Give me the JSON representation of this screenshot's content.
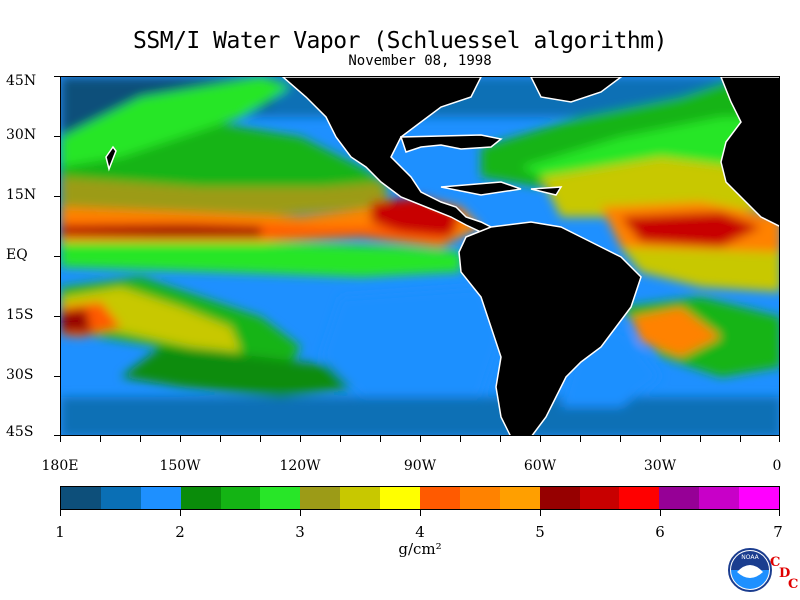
{
  "header": {
    "title": "SSM/I Water Vapor (Schluessel algorithm)",
    "date": "November 08, 1998"
  },
  "map": {
    "lat_labels": [
      "45N",
      "30N",
      "15N",
      "EQ",
      "15S",
      "30S",
      "45S"
    ],
    "lon_labels": [
      "180E",
      "150W",
      "120W",
      "90W",
      "60W",
      "30W",
      "0"
    ],
    "colors": {
      "land": "#000000",
      "coast": "#ffffff"
    }
  },
  "colorbar": {
    "min": 1,
    "max": 7,
    "tick_labels": [
      "1",
      "2",
      "3",
      "4",
      "5",
      "6",
      "7"
    ],
    "unit": "g/cm²",
    "colors": [
      "#0d4f7a",
      "#0a6fb5",
      "#1e90ff",
      "#0a8c0a",
      "#14b414",
      "#28e628",
      "#9c9b17",
      "#c8c800",
      "#ffff00",
      "#ff5a00",
      "#ff8200",
      "#ff9f00",
      "#960000",
      "#c80000",
      "#ff0000",
      "#960096",
      "#c800c8",
      "#ff00ff"
    ]
  },
  "logo": {
    "noaa_text": "NOAA",
    "cdc_letters": [
      "C",
      "D",
      "C"
    ]
  }
}
